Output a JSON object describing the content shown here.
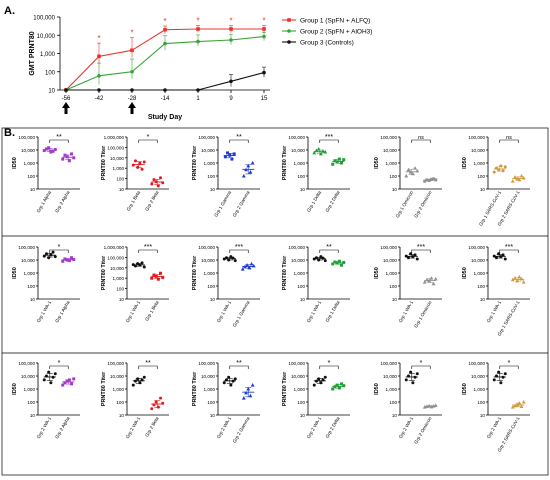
{
  "panel_labels": {
    "a": "A.",
    "b": "B."
  },
  "chart_data": [
    {
      "id": "A",
      "type": "line",
      "title": "",
      "xlabel": "Study Day",
      "ylabel": "GMT PRNT80",
      "y_scale": "log",
      "ylim": [
        10,
        100000
      ],
      "y_ticks": [
        10,
        100,
        1000,
        10000,
        100000
      ],
      "y_tick_labels": [
        "10",
        "100",
        "1,000",
        "10,000",
        "100,000"
      ],
      "x": [
        -56,
        -42,
        -28,
        -14,
        1,
        9,
        15
      ],
      "x_tick_labels": [
        "-56",
        "-42",
        "-28",
        "-14",
        "1",
        "9",
        "15"
      ],
      "arrows_at": [
        -56,
        -28
      ],
      "legend_position": "top-right",
      "series": [
        {
          "name": "Group 1 (SpFN + ALFQ)",
          "color": "#e8332a",
          "marker": "square",
          "values": [
            10,
            700,
            1500,
            20000,
            22000,
            22000,
            22000
          ],
          "err_up": [
            0,
            3000,
            6000,
            12000,
            12000,
            12000,
            12000
          ],
          "err_down": [
            0,
            450,
            900,
            8000,
            8000,
            8000,
            8000
          ]
        },
        {
          "name": "Group 2 (SpFN + AlOH3)",
          "color": "#3aa535",
          "marker": "circle",
          "values": [
            10,
            60,
            100,
            3500,
            4500,
            5500,
            8500
          ],
          "err_up": [
            0,
            240,
            400,
            6000,
            6000,
            6000,
            6000
          ],
          "err_down": [
            0,
            40,
            60,
            2000,
            2000,
            2500,
            3500
          ]
        },
        {
          "name": "Group 3 (Controls)",
          "color": "#111111",
          "marker": "circle",
          "values": [
            10,
            10,
            10,
            10,
            10,
            30,
            90
          ],
          "err_up": [
            0,
            0,
            0,
            0,
            0,
            40,
            90
          ],
          "err_down": [
            0,
            0,
            0,
            0,
            0,
            15,
            40
          ]
        }
      ],
      "significance": [
        {
          "x": -42,
          "label": "*"
        },
        {
          "x": -28,
          "label": "*"
        },
        {
          "x": -14,
          "label": "*"
        },
        {
          "x": 1,
          "label": "*"
        },
        {
          "x": 9,
          "label": "*"
        },
        {
          "x": 15,
          "label": "*"
        }
      ]
    },
    {
      "id": "B1",
      "type": "scatter",
      "ylabel": "ID50",
      "ylim": [
        10,
        100000
      ],
      "y_scale": "log",
      "categories": [
        "Grp 1 Alpha",
        "Grp 2 Alpha"
      ],
      "colors": [
        "#a03cc8",
        "#a03cc8"
      ],
      "markers": [
        "square",
        "square"
      ],
      "groups": [
        [
          9000,
          12000,
          15000,
          7000,
          8000,
          11000
        ],
        [
          2000,
          4000,
          3000,
          1500,
          5000,
          2500
        ]
      ],
      "significance": "**"
    },
    {
      "id": "B2",
      "type": "scatter",
      "ylabel": "PRNT80 Titer",
      "ylim": [
        10,
        1000000
      ],
      "y_scale": "log",
      "categories": [
        "Grp 1 Beta",
        "Grp 2 Beta"
      ],
      "colors": [
        "#e2191f",
        "#e2191f"
      ],
      "markers": [
        "circle",
        "circle"
      ],
      "groups": [
        [
          2000,
          5000,
          1200,
          3000,
          800,
          4000
        ],
        [
          30,
          80,
          50,
          20,
          120,
          40
        ]
      ],
      "significance": "*"
    },
    {
      "id": "B3",
      "type": "scatter",
      "ylabel": "PRNT80 Titer",
      "ylim": [
        10,
        100000
      ],
      "y_scale": "log",
      "categories": [
        "Grp 1 Gamma",
        "Grp 2 Gamma"
      ],
      "colors": [
        "#1f3ad6",
        "#1f3ad6"
      ],
      "markers": [
        "square",
        "triangle"
      ],
      "groups": [
        [
          3000,
          6000,
          4000,
          2000,
          5000
        ],
        [
          100,
          300,
          600,
          200,
          1000
        ]
      ],
      "significance": "**"
    },
    {
      "id": "B4",
      "type": "scatter",
      "ylabel": "PRNT80 Titer",
      "ylim": [
        10,
        100000
      ],
      "y_scale": "log",
      "categories": [
        "Grp 1 Delta",
        "Grp 2 Delta"
      ],
      "colors": [
        "#21a039",
        "#21a039"
      ],
      "markers": [
        "triangle",
        "square"
      ],
      "groups": [
        [
          6000,
          9000,
          12000,
          5000,
          8000,
          7000
        ],
        [
          800,
          1500,
          1200,
          2000,
          1000,
          1800
        ]
      ],
      "significance": "***"
    },
    {
      "id": "B5",
      "type": "scatter",
      "ylabel": "ID50",
      "ylim": [
        10,
        100000
      ],
      "y_scale": "log",
      "categories": [
        "Grp 1 Omicron",
        "Grp 2 Omicron"
      ],
      "colors": [
        "#909090",
        "#909090"
      ],
      "markers": [
        "triangle",
        "square"
      ],
      "groups": [
        [
          100,
          300,
          200,
          150,
          400,
          250
        ],
        [
          40,
          50,
          45,
          55,
          60,
          50
        ]
      ],
      "significance": "ns"
    },
    {
      "id": "B6",
      "type": "scatter",
      "ylabel": "ID50",
      "ylim": [
        10,
        100000
      ],
      "y_scale": "log",
      "categories": [
        "Grp 1 SARS-CoV-1",
        "Grp 2 SARS-CoV-1"
      ],
      "colors": [
        "#d09a42",
        "#d09a42"
      ],
      "markers": [
        "circle",
        "triangle"
      ],
      "groups": [
        [
          200,
          400,
          300,
          600,
          250,
          500
        ],
        [
          40,
          80,
          60,
          50,
          100,
          70
        ]
      ],
      "significance": "ns"
    },
    {
      "id": "B7",
      "type": "scatter",
      "ylabel": "ID50",
      "ylim": [
        10,
        100000
      ],
      "y_scale": "log",
      "categories": [
        "Grp 1 WA-1",
        "Grp 1 Alpha"
      ],
      "colors": [
        "#111111",
        "#a03cc8"
      ],
      "markers": [
        "circle",
        "square"
      ],
      "groups": [
        [
          20000,
          30000,
          15000,
          25000,
          40000,
          18000
        ],
        [
          8000,
          12000,
          10000,
          9000,
          15000,
          11000
        ]
      ],
      "significance": "*"
    },
    {
      "id": "B8",
      "type": "scatter",
      "ylabel": "PRNT80 Titer",
      "ylim": [
        10,
        1000000
      ],
      "y_scale": "log",
      "categories": [
        "Grp 1 WA-1",
        "Grp 1 Beta"
      ],
      "colors": [
        "#111111",
        "#e2191f"
      ],
      "markers": [
        "circle",
        "square"
      ],
      "groups": [
        [
          20000,
          15000,
          25000,
          18000,
          30000,
          12000
        ],
        [
          1000,
          2000,
          1500,
          800,
          3000,
          1200
        ]
      ],
      "significance": "***"
    },
    {
      "id": "B9",
      "type": "scatter",
      "ylabel": "PRNT80 Titer",
      "ylim": [
        10,
        100000
      ],
      "y_scale": "log",
      "categories": [
        "Grp 1 WA-1",
        "Grp 1 Gamma"
      ],
      "colors": [
        "#111111",
        "#1f3ad6"
      ],
      "markers": [
        "circle",
        "triangle"
      ],
      "groups": [
        [
          12000,
          15000,
          10000,
          18000,
          14000,
          9000
        ],
        [
          2000,
          3000,
          4000,
          2500,
          5000,
          3500
        ]
      ],
      "significance": "***"
    },
    {
      "id": "B10",
      "type": "scatter",
      "ylabel": "PRNT80 Titer",
      "ylim": [
        10,
        100000
      ],
      "y_scale": "log",
      "categories": [
        "Grp 1 WA-1",
        "Grp 1 Delta"
      ],
      "colors": [
        "#111111",
        "#21a039"
      ],
      "markers": [
        "circle",
        "square"
      ],
      "groups": [
        [
          12000,
          15000,
          10000,
          18000,
          14000,
          9000
        ],
        [
          5000,
          7000,
          6000,
          8000,
          4000,
          6500
        ]
      ],
      "significance": "**"
    },
    {
      "id": "B11",
      "type": "scatter",
      "ylabel": "ID50",
      "ylim": [
        10,
        100000
      ],
      "y_scale": "log",
      "categories": [
        "Grp 1 WA-1",
        "Grp 1 Omicron"
      ],
      "colors": [
        "#111111",
        "#909090"
      ],
      "markers": [
        "circle",
        "triangle"
      ],
      "groups": [
        [
          20000,
          15000,
          30000,
          18000,
          25000,
          12000
        ],
        [
          200,
          300,
          250,
          400,
          150,
          350
        ]
      ],
      "significance": "***"
    },
    {
      "id": "B12",
      "type": "scatter",
      "ylabel": "ID50",
      "ylim": [
        10,
        100000
      ],
      "y_scale": "log",
      "categories": [
        "Grp 1 WA-1",
        "Grp 1 SARS-CoV-1"
      ],
      "colors": [
        "#111111",
        "#d09a42"
      ],
      "markers": [
        "circle",
        "triangle"
      ],
      "groups": [
        [
          20000,
          15000,
          30000,
          18000,
          25000,
          12000
        ],
        [
          300,
          400,
          250,
          500,
          350,
          200
        ]
      ],
      "significance": "***"
    },
    {
      "id": "B13",
      "type": "scatter",
      "ylabel": "ID50",
      "ylim": [
        10,
        100000
      ],
      "y_scale": "log",
      "categories": [
        "Grp 2 WA-1",
        "Grp 2 Alpha"
      ],
      "colors": [
        "#111111",
        "#a03cc8"
      ],
      "markers": [
        "circle",
        "square"
      ],
      "groups": [
        [
          5000,
          10000,
          20000,
          3000,
          8000,
          15000
        ],
        [
          2000,
          3000,
          4000,
          5000,
          2500,
          6000
        ]
      ],
      "significance": "*"
    },
    {
      "id": "B14",
      "type": "scatter",
      "ylabel": "PRNT80 Titer",
      "ylim": [
        10,
        100000
      ],
      "y_scale": "log",
      "categories": [
        "Grp 2 WA-1",
        "Grp 2 Beta"
      ],
      "colors": [
        "#111111",
        "#e2191f"
      ],
      "markers": [
        "circle",
        "circle"
      ],
      "groups": [
        [
          2000,
          4000,
          6000,
          3000,
          5000,
          8000
        ],
        [
          30,
          60,
          100,
          40,
          200,
          80
        ]
      ],
      "significance": "**"
    },
    {
      "id": "B15",
      "type": "scatter",
      "ylabel": "PRNT80 Titer",
      "ylim": [
        10,
        100000
      ],
      "y_scale": "log",
      "categories": [
        "Grp 2 WA-1",
        "Grp 2 Gamma"
      ],
      "colors": [
        "#111111",
        "#1f3ad6"
      ],
      "markers": [
        "circle",
        "triangle"
      ],
      "groups": [
        [
          3000,
          5000,
          8000,
          2000,
          4000,
          6000
        ],
        [
          200,
          500,
          1000,
          300,
          2000
        ]
      ],
      "significance": "**"
    },
    {
      "id": "B16",
      "type": "scatter",
      "ylabel": "PRNT80 Titer",
      "ylim": [
        10,
        100000
      ],
      "y_scale": "log",
      "categories": [
        "Grp 2 WA-1",
        "Grp 2 Delta"
      ],
      "colors": [
        "#111111",
        "#21a039"
      ],
      "markers": [
        "circle",
        "square"
      ],
      "groups": [
        [
          2000,
          4000,
          6000,
          3000,
          5000,
          8000
        ],
        [
          1000,
          1500,
          2000,
          1200,
          2500,
          1800
        ]
      ],
      "significance": "*"
    },
    {
      "id": "B17",
      "type": "scatter",
      "ylabel": "ID50",
      "ylim": [
        10,
        100000
      ],
      "y_scale": "log",
      "categories": [
        "Grp 2 WA-1",
        "Grp 2 Omicron"
      ],
      "colors": [
        "#111111",
        "#909090"
      ],
      "markers": [
        "circle",
        "triangle"
      ],
      "groups": [
        [
          5000,
          10000,
          20000,
          3000,
          8000,
          15000
        ],
        [
          40,
          45,
          50,
          42,
          48,
          55
        ]
      ],
      "significance": "*"
    },
    {
      "id": "B18",
      "type": "scatter",
      "ylabel": "ID50",
      "ylim": [
        10,
        100000
      ],
      "y_scale": "log",
      "categories": [
        "Grp 2 WA-1",
        "Grp 2 SARS-CoV-1"
      ],
      "colors": [
        "#111111",
        "#d09a42"
      ],
      "markers": [
        "circle",
        "triangle"
      ],
      "groups": [
        [
          5000,
          10000,
          20000,
          3000,
          8000,
          15000
        ],
        [
          40,
          50,
          60,
          80,
          45,
          100
        ]
      ],
      "significance": "*"
    }
  ]
}
